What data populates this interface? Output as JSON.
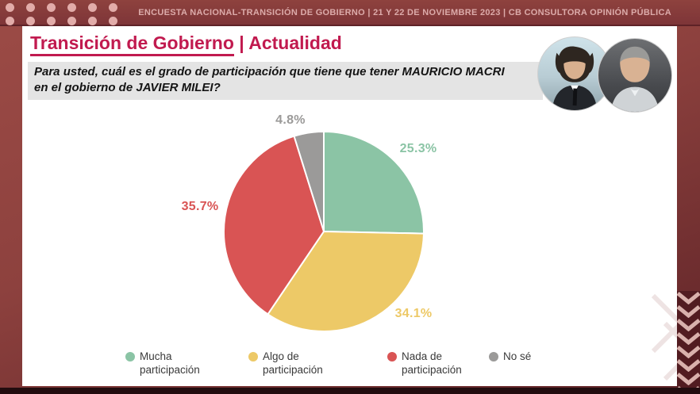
{
  "header": {
    "bar_text": "ENCUESTA NACIONAL-TRANSICIÓN DE GOBIERNO  | 21 Y 22 DE NOVIEMBRE 2023 | CB CONSULTORA OPINIÓN PÚBLICA"
  },
  "card": {
    "title_main": "Transición de Gobierno",
    "title_rest": " | Actualidad",
    "question_line1": "Para usted, cuál es el grado de participación que tiene que tener MAURICIO MACRI",
    "question_line2": "en el gobierno de JAVIER MILEI?"
  },
  "chart_data": {
    "type": "pie",
    "categories": [
      "Mucha participación",
      "Algo de participación",
      "Nada de participación",
      "No sé"
    ],
    "values": [
      25.3,
      34.1,
      35.7,
      4.8
    ],
    "value_labels": [
      "25.3%",
      "34.1%",
      "35.7%",
      "4.8%"
    ],
    "colors": [
      "#8bc4a5",
      "#edc967",
      "#d95454",
      "#9b9a99"
    ],
    "start_angle_deg": 0,
    "direction": "clockwise",
    "legend_position": "bottom"
  },
  "legend": {
    "items": [
      {
        "line1": "Mucha",
        "line2": "participación",
        "color": "#8bc4a5"
      },
      {
        "line1": "Algo de",
        "line2": "participación",
        "color": "#edc967"
      },
      {
        "line1": "Nada de",
        "line2": "participación",
        "color": "#d95454"
      },
      {
        "line1": "No sé",
        "line2": "",
        "color": "#9b9a99"
      }
    ]
  },
  "colors": {
    "accent_title": "#c11a4f",
    "bar_text": "#dcabaa",
    "background_maroon": "#8d413e"
  }
}
